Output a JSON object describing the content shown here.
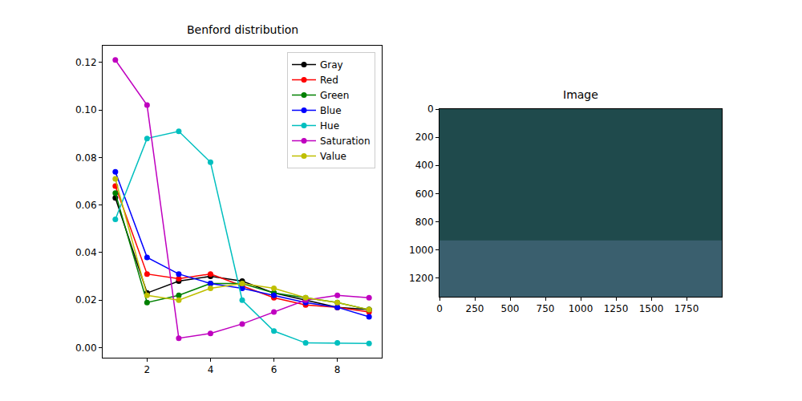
{
  "chart_data": [
    {
      "type": "line",
      "title": "Benford distribution",
      "x": [
        1,
        2,
        3,
        4,
        5,
        6,
        7,
        8,
        9
      ],
      "series": [
        {
          "name": "Gray",
          "color": "#000000",
          "marker": "circle",
          "line_style": "solid",
          "values": [
            0.063,
            0.023,
            0.028,
            0.03,
            0.028,
            0.023,
            0.02,
            0.017,
            0.016
          ]
        },
        {
          "name": "Red",
          "color": "#ff0000",
          "marker": "circle",
          "line_style": "solid",
          "values": [
            0.068,
            0.031,
            0.029,
            0.031,
            0.026,
            0.021,
            0.018,
            0.017,
            0.015
          ]
        },
        {
          "name": "Green",
          "color": "#008000",
          "marker": "circle",
          "line_style": "solid",
          "values": [
            0.065,
            0.019,
            0.022,
            0.027,
            0.027,
            0.023,
            0.021,
            0.019,
            0.016
          ]
        },
        {
          "name": "Blue",
          "color": "#0000ff",
          "marker": "circle",
          "line_style": "solid",
          "values": [
            0.074,
            0.038,
            0.031,
            0.027,
            0.025,
            0.022,
            0.019,
            0.017,
            0.013
          ]
        },
        {
          "name": "Hue",
          "color": "#00bfbf",
          "marker": "circle",
          "line_style": "solid",
          "values": [
            0.054,
            0.088,
            0.091,
            0.078,
            0.02,
            0.007,
            0.002,
            0.002,
            0.0018
          ]
        },
        {
          "name": "Saturation",
          "color": "#bf00bf",
          "marker": "circle",
          "line_style": "solid",
          "values": [
            0.121,
            0.102,
            0.004,
            0.006,
            0.01,
            0.015,
            0.02,
            0.022,
            0.021
          ]
        },
        {
          "name": "Value",
          "color": "#bfbf00",
          "marker": "circle",
          "line_style": "solid",
          "values": [
            0.071,
            0.022,
            0.02,
            0.025,
            0.027,
            0.025,
            0.021,
            0.019,
            0.016
          ]
        }
      ],
      "xlim": [
        0.6,
        9.4
      ],
      "xticks": [
        2,
        4,
        6,
        8
      ],
      "ylim": [
        -0.0042,
        0.127
      ],
      "yticks": [
        {
          "value": 0,
          "label": "0.00"
        },
        0.02,
        0.04,
        0.06,
        0.08,
        {
          "value": 0.1,
          "label": "0.10"
        },
        0.12
      ],
      "legend": "upper right",
      "grid": false
    },
    {
      "type": "image",
      "title": "Image",
      "xlim": [
        0,
        2000
      ],
      "xticks": [
        0,
        250,
        500,
        750,
        1000,
        1250,
        1500,
        1750
      ],
      "ylim": [
        1333,
        0
      ],
      "yticks": [
        0,
        200,
        400,
        600,
        800,
        1000,
        1200
      ],
      "grid": false
    }
  ]
}
